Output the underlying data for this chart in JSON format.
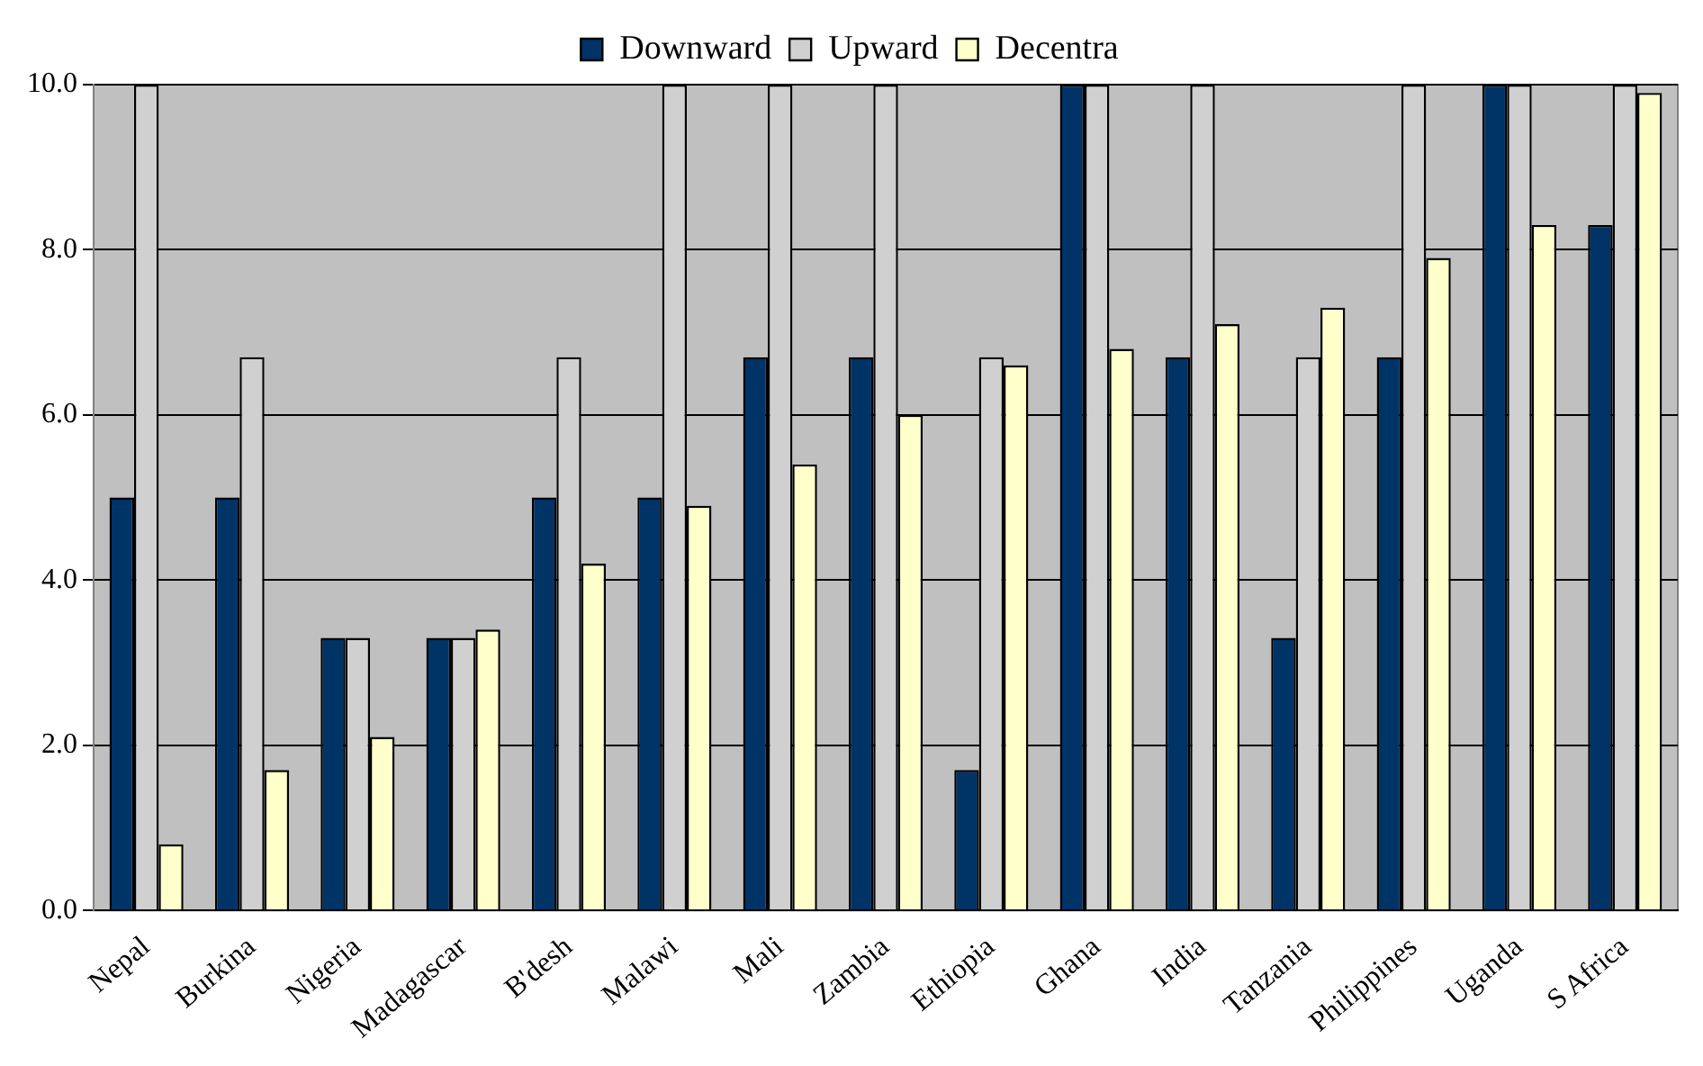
{
  "chart_data": {
    "type": "bar",
    "categories": [
      "Nepal",
      "Burkina",
      "Nigeria",
      "Madagascar",
      "B'desh",
      "Malawi",
      "Mali",
      "Zambia",
      "Ethiopia",
      "Ghana",
      "India",
      "Tanzania",
      "Philippines",
      "Uganda",
      "S Africa"
    ],
    "series": [
      {
        "name": "Downward",
        "color": "#003366",
        "values": [
          5,
          5,
          3.3,
          3.3,
          5,
          5,
          6.7,
          6.7,
          1.7,
          10,
          6.7,
          3.3,
          6.7,
          10,
          8.3
        ]
      },
      {
        "name": "Upward",
        "color": "#d0d0d0",
        "values": [
          10,
          6.7,
          3.3,
          3.3,
          6.7,
          10,
          10,
          10,
          6.7,
          10,
          10,
          6.7,
          10,
          10,
          10
        ]
      },
      {
        "name": "Decentra",
        "color": "#ffffcc",
        "values": [
          0.8,
          1.7,
          2.1,
          3.4,
          4.2,
          4.9,
          5.4,
          6.0,
          6.6,
          6.8,
          7.1,
          7.3,
          7.9,
          8.3,
          9.9
        ]
      }
    ],
    "ylim": [
      0,
      10
    ],
    "yticks": [
      {
        "value": 0,
        "label": "0.0"
      },
      {
        "value": 2,
        "label": "2.0"
      },
      {
        "value": 4,
        "label": "4.0"
      },
      {
        "value": 6,
        "label": "6.0"
      },
      {
        "value": 8,
        "label": "8.0"
      },
      {
        "value": 10,
        "label": "10.0"
      }
    ],
    "grid": "y",
    "legend": "top"
  }
}
